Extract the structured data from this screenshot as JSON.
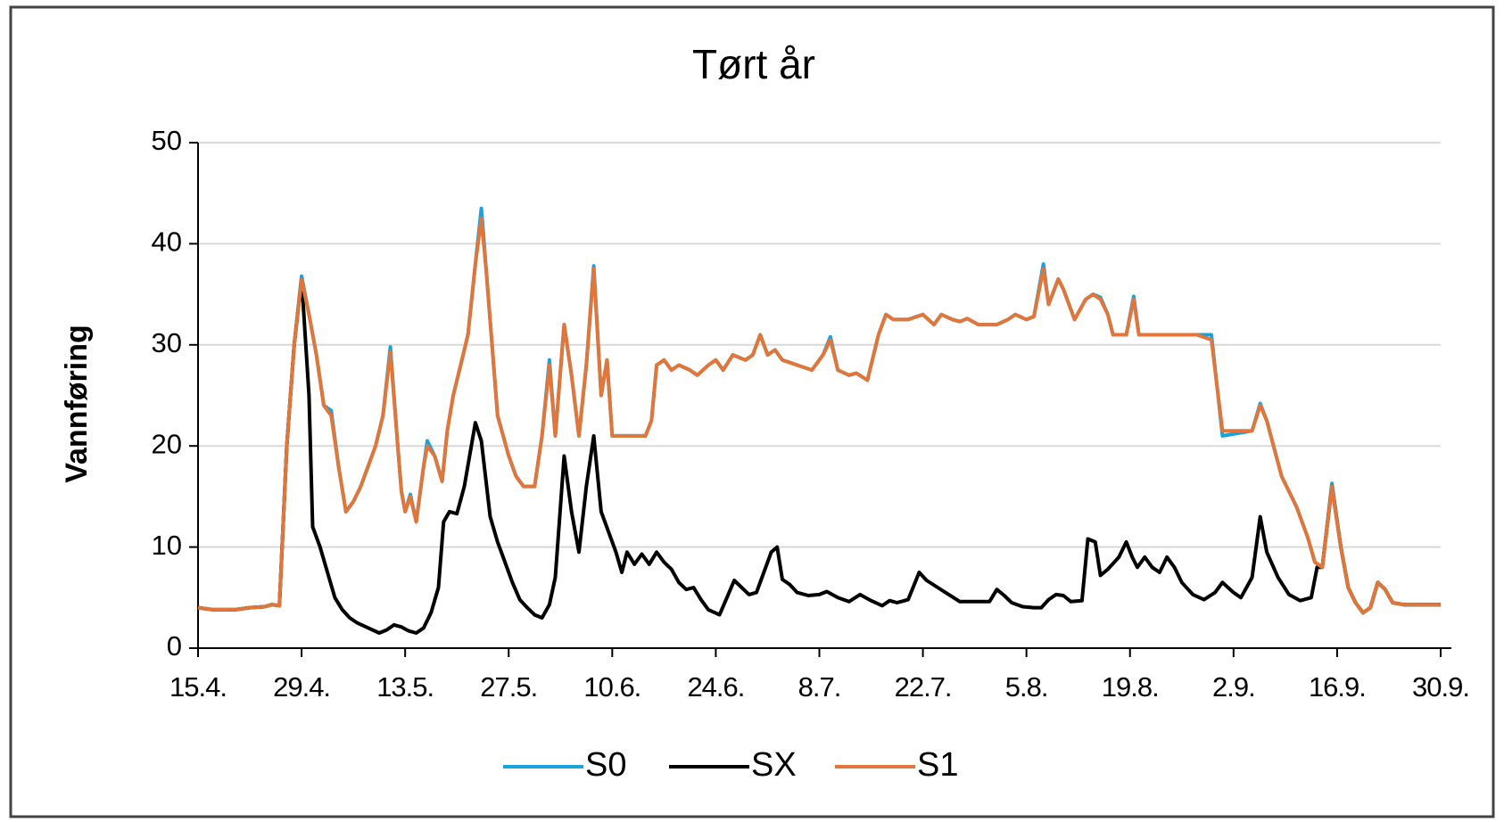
{
  "chart_data": {
    "type": "line",
    "title": "Tørt år",
    "y_label": "Vannføring",
    "xlim": [
      0,
      168
    ],
    "ylim": [
      0,
      50
    ],
    "yticks": [
      0,
      10,
      20,
      30,
      40,
      50
    ],
    "xticks": [
      {
        "value": 0,
        "label": "15.4."
      },
      {
        "value": 14,
        "label": "29.4."
      },
      {
        "value": 28,
        "label": "13.5."
      },
      {
        "value": 42,
        "label": "27.5."
      },
      {
        "value": 56,
        "label": "10.6."
      },
      {
        "value": 70,
        "label": "24.6."
      },
      {
        "value": 84,
        "label": "8.7."
      },
      {
        "value": 98,
        "label": "22.7."
      },
      {
        "value": 112,
        "label": "5.8."
      },
      {
        "value": 126,
        "label": "19.8."
      },
      {
        "value": 140,
        "label": "2.9."
      },
      {
        "value": 154,
        "label": "16.9."
      },
      {
        "value": 168,
        "label": "30.9."
      }
    ],
    "grid": true,
    "legend": "bottom",
    "series": [
      {
        "name": "S0",
        "color": "#1aa2dc",
        "x": [
          0,
          2,
          5,
          7,
          9,
          10,
          11,
          12,
          13,
          14,
          15,
          16,
          17,
          18,
          19,
          20,
          21,
          22,
          24,
          25,
          26,
          27,
          27.5,
          28,
          28.7,
          29.5,
          30.5,
          31,
          32,
          33,
          33.7,
          34.5,
          35.5,
          36.5,
          37.5,
          38.3,
          39,
          40.5,
          42,
          43,
          44,
          45.5,
          46.5,
          47.5,
          48.3,
          49.5,
          50.5,
          51.5,
          52.5,
          53.5,
          54.5,
          55.3,
          56,
          57,
          60.5,
          61.3,
          62,
          63,
          64,
          65,
          66.5,
          67.5,
          69,
          70,
          71,
          72.3,
          74,
          75,
          76,
          77,
          78,
          79,
          81,
          83,
          84.5,
          85.5,
          86.5,
          88,
          89,
          90.5,
          92,
          93,
          94,
          96,
          98,
          99.5,
          100.5,
          102,
          103,
          104,
          105.5,
          108,
          109.5,
          110.5,
          112,
          113,
          114.3,
          115,
          116.3,
          117,
          118.5,
          120,
          121,
          122,
          123,
          123.7,
          125.5,
          126.5,
          127.2,
          130,
          135,
          137,
          138.5,
          142.5,
          143.6,
          144.5,
          146.5,
          148.5,
          150,
          151,
          152,
          153.3,
          154.5,
          155.5,
          156.5,
          157.5,
          158.5,
          159.5,
          160.5,
          161.5,
          163,
          168
        ],
        "values": [
          4,
          3.8,
          3.8,
          4,
          4.1,
          4.3,
          4.2,
          20,
          30,
          36.8,
          33,
          29,
          24,
          23.5,
          18,
          13.5,
          14.5,
          16,
          20,
          23,
          29.8,
          20,
          15.5,
          13.5,
          15.2,
          12.5,
          18,
          20.5,
          19,
          16.5,
          21.5,
          25,
          28,
          31,
          38,
          43.5,
          37,
          23,
          19,
          17,
          16,
          16,
          21,
          28.5,
          21,
          32,
          27,
          21,
          28,
          37.8,
          25,
          28.5,
          21,
          21,
          21,
          22.5,
          28,
          28.5,
          27.5,
          28,
          27.5,
          27,
          28,
          28.5,
          27.5,
          29,
          28.5,
          29,
          31,
          29,
          29.5,
          28.5,
          28,
          27.5,
          29,
          30.8,
          27.5,
          27,
          27.2,
          26.5,
          31,
          33,
          32.5,
          32.5,
          33,
          32,
          33,
          32.5,
          32.3,
          32.6,
          32,
          32,
          32.5,
          33,
          32.5,
          32.8,
          38,
          34,
          36.5,
          35.5,
          32.5,
          34.5,
          35,
          34.7,
          33,
          31,
          31,
          34.8,
          31,
          31,
          31,
          31,
          21,
          21.5,
          24.2,
          22.5,
          17,
          14,
          11,
          8.5,
          8,
          16.3,
          10,
          6,
          4.5,
          3.5,
          4,
          6.5,
          5.8,
          4.5,
          4.3,
          4.3
        ]
      },
      {
        "name": "SX",
        "color": "#000000",
        "x": [
          0,
          2,
          5,
          7,
          9,
          10,
          11,
          12,
          13,
          14,
          15,
          15.5,
          16.5,
          17.5,
          18.5,
          19.5,
          20.5,
          21.5,
          23,
          24.5,
          25.5,
          26.5,
          27.5,
          28.5,
          29.5,
          30.5,
          31.5,
          32.5,
          33.2,
          34,
          35,
          36,
          37.5,
          38.3,
          39.5,
          40.5,
          41.5,
          42.5,
          43.5,
          44.5,
          45.5,
          46.5,
          47.5,
          48.3,
          49.5,
          50.5,
          51.5,
          52.5,
          53.5,
          54.5,
          55.5,
          56.5,
          57.3,
          58,
          59,
          60,
          61,
          62,
          63,
          64,
          65,
          66,
          67,
          68,
          69,
          70.5,
          71.5,
          72.5,
          73.5,
          74.5,
          75.5,
          76.5,
          77.5,
          78.3,
          79,
          80,
          81,
          82.5,
          84,
          85,
          86.5,
          88,
          89.5,
          91,
          92.5,
          93.5,
          94.5,
          96,
          97.5,
          98.5,
          100,
          101.5,
          103,
          105,
          107,
          108,
          109,
          110,
          111.5,
          113,
          114,
          115,
          116,
          117,
          118,
          119.5,
          120.3,
          121.3,
          122,
          123,
          124.5,
          125.5,
          126.3,
          127,
          128,
          129,
          130,
          131,
          132,
          133,
          134.5,
          136,
          137.5,
          138.5,
          140,
          141,
          142.5,
          143.6,
          144.5,
          146,
          147.5,
          149,
          150.5,
          151.3,
          152,
          153.3,
          154.5,
          155.5,
          156.5,
          157.5,
          158.5,
          159.5,
          160.5,
          161.5,
          163,
          168
        ],
        "values": [
          4,
          3.8,
          3.8,
          4,
          4.1,
          4.3,
          4.2,
          20,
          30,
          36.5,
          25,
          12,
          10,
          7.5,
          5,
          3.8,
          3,
          2.5,
          2,
          1.5,
          1.8,
          2.3,
          2.1,
          1.7,
          1.5,
          2,
          3.5,
          6,
          12.5,
          13.5,
          13.3,
          16,
          22.3,
          20.5,
          13,
          10.5,
          8.5,
          6.5,
          4.8,
          4,
          3.3,
          3,
          4.3,
          7,
          19,
          13.5,
          9.5,
          16,
          21,
          13.5,
          11.5,
          9.5,
          7.5,
          9.5,
          8.3,
          9.3,
          8.3,
          9.5,
          8.5,
          7.8,
          6.5,
          5.8,
          6,
          4.8,
          3.8,
          3.3,
          5,
          6.7,
          6,
          5.3,
          5.5,
          7.5,
          9.5,
          10,
          6.8,
          6.3,
          5.5,
          5.2,
          5.3,
          5.6,
          5,
          4.6,
          5.3,
          4.7,
          4.2,
          4.7,
          4.5,
          4.8,
          7.5,
          6.7,
          6,
          5.3,
          4.6,
          4.6,
          4.6,
          5.8,
          5.2,
          4.5,
          4.1,
          4,
          4,
          4.8,
          5.3,
          5.2,
          4.6,
          4.7,
          10.8,
          10.5,
          7.2,
          7.8,
          9,
          10.5,
          9,
          8,
          9,
          8,
          7.5,
          9,
          8,
          6.5,
          5.3,
          4.8,
          5.5,
          6.5,
          5.5,
          5,
          7,
          13,
          9.5,
          7,
          5.3,
          4.7,
          5,
          8,
          8,
          16,
          10,
          6,
          4.5,
          3.5,
          4,
          6.5,
          5.8,
          4.5,
          4.3,
          4.3
        ]
      },
      {
        "name": "S1",
        "color": "#e0763a",
        "x": [
          0,
          2,
          5,
          7,
          9,
          10,
          11,
          12,
          13,
          14,
          15,
          16,
          17,
          18,
          19,
          20,
          21,
          22,
          24,
          25,
          26,
          27,
          27.5,
          28,
          28.7,
          29.5,
          30.5,
          31,
          32,
          33,
          33.7,
          34.5,
          35.5,
          36.5,
          37.5,
          38.3,
          39,
          40.5,
          42,
          43,
          44,
          45.5,
          46.5,
          47.5,
          48.3,
          49.5,
          50.5,
          51.5,
          52.5,
          53.5,
          54.5,
          55.3,
          56,
          57,
          60.5,
          61.3,
          62,
          63,
          64,
          65,
          66.5,
          67.5,
          69,
          70,
          71,
          72.3,
          74,
          75,
          76,
          77,
          78,
          79,
          81,
          83,
          84.5,
          85.5,
          86.5,
          88,
          89,
          90.5,
          92,
          93,
          94,
          96,
          98,
          99.5,
          100.5,
          102,
          103,
          104,
          105.5,
          108,
          109.5,
          110.5,
          112,
          113,
          114.3,
          115,
          116.3,
          117,
          118.5,
          120,
          121,
          122,
          123,
          123.7,
          125.5,
          126.5,
          127.2,
          130,
          135,
          137,
          138.5,
          142.5,
          143.6,
          144.5,
          146.5,
          148.5,
          150,
          151,
          152,
          153.3,
          154.5,
          155.5,
          156.5,
          157.5,
          158.5,
          159.5,
          160.5,
          161.5,
          163,
          168
        ],
        "values": [
          4,
          3.8,
          3.8,
          4,
          4.1,
          4.3,
          4.2,
          20,
          30,
          36.5,
          33,
          29,
          24,
          23,
          18,
          13.5,
          14.5,
          16,
          20,
          23,
          29.3,
          20,
          15.5,
          13.5,
          15,
          12.5,
          18,
          20,
          19,
          16.5,
          21.5,
          25,
          28,
          31,
          38,
          42.5,
          37,
          23,
          19,
          17,
          16,
          16,
          21,
          28,
          21,
          32,
          27,
          21,
          28,
          37.5,
          25,
          28.5,
          21,
          21,
          21,
          22.5,
          28,
          28.5,
          27.5,
          28,
          27.5,
          27,
          28,
          28.5,
          27.5,
          29,
          28.5,
          29,
          31,
          29,
          29.5,
          28.5,
          28,
          27.5,
          29,
          30.5,
          27.5,
          27,
          27.2,
          26.5,
          31,
          33,
          32.5,
          32.5,
          33,
          32,
          33,
          32.5,
          32.3,
          32.6,
          32,
          32,
          32.5,
          33,
          32.5,
          32.8,
          37.5,
          34,
          36.5,
          35.5,
          32.5,
          34.5,
          35,
          34.5,
          33,
          31,
          31,
          34.5,
          31,
          31,
          31,
          30.5,
          21.5,
          21.5,
          24,
          22.5,
          17,
          14,
          11,
          8.5,
          8,
          16,
          10,
          6,
          4.5,
          3.5,
          4,
          6.5,
          5.8,
          4.5,
          4.3,
          4.3
        ]
      }
    ]
  }
}
